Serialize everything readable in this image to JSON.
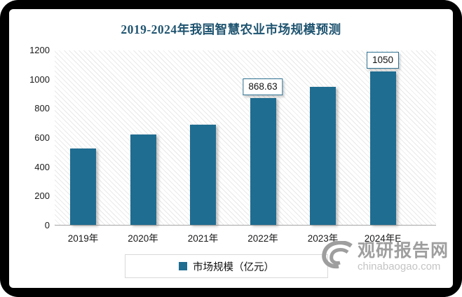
{
  "chart_data": {
    "type": "bar",
    "title": "2019-2024年我国智慧农业市场规模预测",
    "categories": [
      "2019年",
      "2020年",
      "2021年",
      "2022年",
      "2023年",
      "2024年E"
    ],
    "series": [
      {
        "name": "市场规模（亿元）",
        "values": [
          525,
          620,
          685,
          868.63,
          945,
          1050
        ]
      }
    ],
    "data_labels": [
      null,
      null,
      null,
      "868.63",
      null,
      "1050"
    ],
    "xlabel": "",
    "ylabel": "",
    "ylim": [
      0,
      1200
    ],
    "yticks": [
      0,
      200,
      400,
      600,
      800,
      1000,
      1200
    ],
    "grid": false,
    "legend_position": "bottom",
    "plot_background": "diagonal-hatch"
  },
  "legend": {
    "label": "市场规模（亿元）"
  },
  "watermark": {
    "logo": "swirl-logo",
    "name": "观研报告网",
    "domain": "chinabaogao.com"
  },
  "colors": {
    "bar": "#1F6D91",
    "title": "#1F5470",
    "label_box_border": "#2D7090",
    "axis_line": "#A6A6A6",
    "legend_border": "#D9D9D9",
    "hatch_line": "#E9E9E9",
    "watermark_name": "#9E9E9E",
    "watermark_domain": "#C4C4C4",
    "frame": "#000000"
  }
}
